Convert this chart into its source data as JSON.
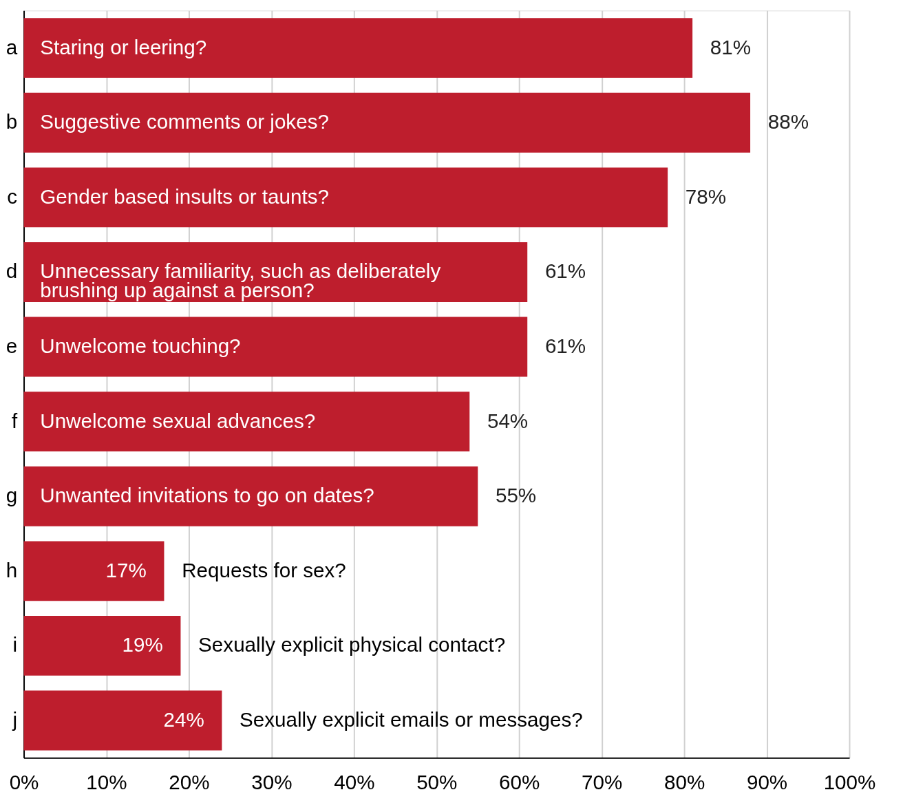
{
  "chart_data": {
    "type": "bar",
    "orientation": "horizontal",
    "categories": [
      "a",
      "b",
      "c",
      "d",
      "e",
      "f",
      "g",
      "h",
      "i",
      "j"
    ],
    "values": [
      81,
      88,
      78,
      61,
      61,
      54,
      55,
      17,
      19,
      24
    ],
    "color": "#be1e2d",
    "value_labels": [
      "81%",
      "88%",
      "78%",
      "61%",
      "61%",
      "54%",
      "55%",
      "17%",
      "19%",
      "24%"
    ],
    "xlim": [
      0,
      100
    ],
    "xticks": [
      {
        "value": 0,
        "label": "0%"
      },
      {
        "value": 10,
        "label": "10%"
      },
      {
        "value": 20,
        "label": "20%"
      },
      {
        "value": 30,
        "label": "30%"
      },
      {
        "value": 40,
        "label": "40%"
      },
      {
        "value": 50,
        "label": "50%"
      },
      {
        "value": 60,
        "label": "60%"
      },
      {
        "value": 70,
        "label": "70%"
      },
      {
        "value": 80,
        "label": "80%"
      },
      {
        "value": 90,
        "label": "90%"
      },
      {
        "value": 100,
        "label": "100%"
      }
    ],
    "annotations": [
      "Staring or leering?",
      "Suggestive comments or jokes?",
      "Gender based insults or taunts?",
      "Unnecessary familiarity, such as deliberately\nbrushing up against a person?",
      "Unwelcome touching?",
      "Unwelcome sexual advances?",
      "Unwanted invitations to go on dates?",
      "Requests for sex?",
      "Sexually explicit physical contact?",
      "Sexually explicit emails or messages?"
    ],
    "grid": "x"
  }
}
